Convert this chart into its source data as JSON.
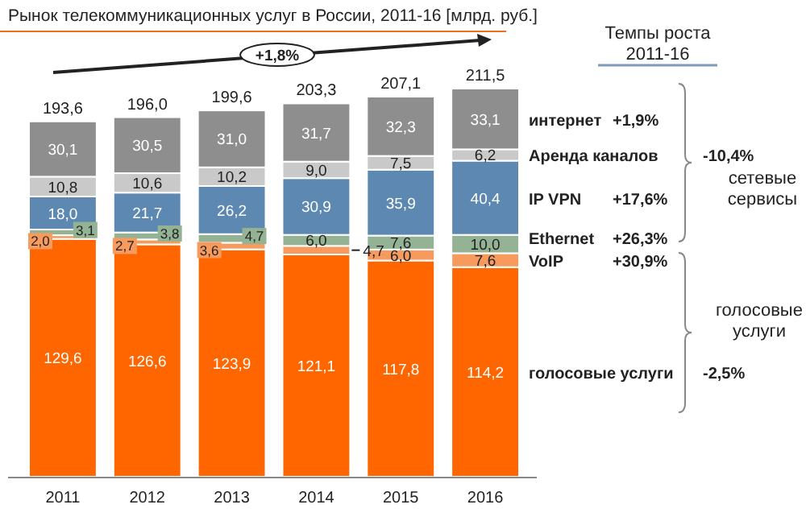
{
  "chart_data": {
    "type": "bar",
    "stacked": true,
    "legend": "right",
    "title": "Рынок телекоммуникационных услуг в России, 2011-16 [млрд. руб.]",
    "categories": [
      "2011",
      "2012",
      "2013",
      "2014",
      "2015",
      "2016"
    ],
    "series": [
      {
        "name": "голосовые услуги",
        "color": "#ff6600",
        "values": [
          129.6,
          126.6,
          123.9,
          121.1,
          117.8,
          114.2
        ],
        "value_labels": [
          "129,6",
          "126,6",
          "123,9",
          "121,1",
          "117,8",
          "114,2"
        ]
      },
      {
        "name": "VoIP",
        "color": "#f79a5e",
        "values": [
          2.0,
          2.7,
          3.6,
          4.7,
          6.0,
          7.6
        ],
        "value_labels": [
          "2,0",
          "2,7",
          "3,6",
          "4,7",
          "6,0",
          "7,6"
        ]
      },
      {
        "name": "Ethernet",
        "color": "#93b394",
        "values": [
          3.1,
          3.8,
          4.7,
          6.0,
          7.6,
          10.0
        ],
        "value_labels": [
          "3,1",
          "3,8",
          "4,7",
          "6,0",
          "7,6",
          "10,0"
        ]
      },
      {
        "name": "IP VPN",
        "color": "#5d88b1",
        "values": [
          18.0,
          21.7,
          26.2,
          30.9,
          35.9,
          40.4
        ],
        "value_labels": [
          "18,0",
          "21,7",
          "26,2",
          "30,9",
          "35,9",
          "40,4"
        ]
      },
      {
        "name": "Аренда каналов",
        "color": "#c9c9c9",
        "values": [
          10.8,
          10.6,
          10.2,
          9.0,
          7.5,
          6.2
        ],
        "value_labels": [
          "10,8",
          "10,6",
          "10,2",
          "9,0",
          "7,5",
          "6,2"
        ]
      },
      {
        "name": "интернет",
        "color": "#8e8e8e",
        "values": [
          30.1,
          30.5,
          31.0,
          31.7,
          32.3,
          33.1
        ],
        "value_labels": [
          "30,1",
          "30,5",
          "31,0",
          "31,7",
          "32,3",
          "33,1"
        ]
      }
    ],
    "totals": [
      "193,6",
      "196,0",
      "199,6",
      "203,3",
      "207,1",
      "211,5"
    ],
    "annotations": [
      "+1,8%",
      "Темпы роста 2011-16",
      "-2,5%",
      "+30,9%",
      "+26,3%",
      "+17,6%",
      "-10,4%",
      "+1,9%",
      "сетевые сервисы",
      "голосовые услуги"
    ]
  }
}
